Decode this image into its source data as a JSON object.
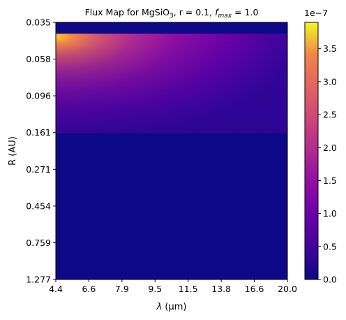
{
  "chart_data": {
    "type": "heatmap",
    "title": {
      "prefix": "Flux Map for MgSiO",
      "sub": "3",
      "middle": ", r = 0.1, ",
      "italic": "f",
      "italic_sub": "max",
      "suffix": " = 1.0"
    },
    "xlabel": {
      "symbol": "λ",
      "unit": " (μm)"
    },
    "ylabel": "R (AU)",
    "x_ticks": [
      "4.4",
      "6.6",
      "7.9",
      "9.5",
      "11.5",
      "13.8",
      "16.6",
      "20.0"
    ],
    "y_ticks": [
      "0.035",
      "0.058",
      "0.096",
      "0.161",
      "0.271",
      "0.454",
      "0.759",
      "1.277"
    ],
    "x_range": [
      4.4,
      20.0
    ],
    "y_range": [
      0.035,
      1.277
    ],
    "y_scale": "log",
    "colorscale": "plasma",
    "colorbar": {
      "min": 0,
      "max": 3.9e-07,
      "ticks": [
        "0.0",
        "0.5",
        "1.0",
        "1.5",
        "2.0",
        "2.5",
        "3.0",
        "3.5"
      ],
      "offset_label": "1e−7"
    },
    "flux_map": {
      "empty_bands": [
        {
          "r_from": 0.035,
          "r_to": 0.041,
          "value": 0
        },
        {
          "r_from": 0.165,
          "r_to": 1.277,
          "value": 0
        }
      ],
      "peak_value": 3.9e-07,
      "peak_at": {
        "r": 0.041,
        "lambda": 4.4
      }
    }
  }
}
